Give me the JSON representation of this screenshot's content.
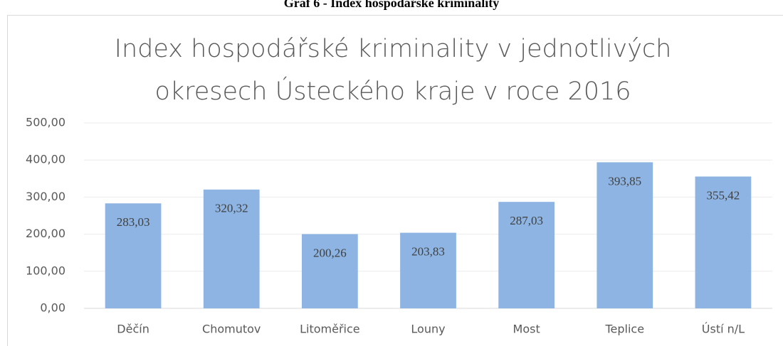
{
  "caption": "Graf 6 - Index hospodářské kriminality",
  "chart_data": {
    "type": "bar",
    "title": [
      "Index hospodářské kriminality v jednotlivých",
      "okresech Ústeckého kraje v roce 2016"
    ],
    "categories": [
      "Děčín",
      "Chomutov",
      "Litoměřice",
      "Louny",
      "Most",
      "Teplice",
      "Ústí n/L"
    ],
    "values": [
      283.03,
      320.32,
      200.26,
      203.83,
      287.03,
      393.85,
      355.42
    ],
    "value_labels": [
      "283,03",
      "320,32",
      "200,26",
      "203,83",
      "287,03",
      "393,85",
      "355,42"
    ],
    "color": "#8db4e2",
    "ylim": [
      0,
      500
    ],
    "yticks": [
      {
        "value": 0,
        "label": "0,00"
      },
      {
        "value": 100,
        "label": "100,00"
      },
      {
        "value": 200,
        "label": "200,00"
      },
      {
        "value": 300,
        "label": "300,00"
      },
      {
        "value": 400,
        "label": "400,00"
      },
      {
        "value": 500,
        "label": "500,00"
      }
    ],
    "grid": true
  }
}
